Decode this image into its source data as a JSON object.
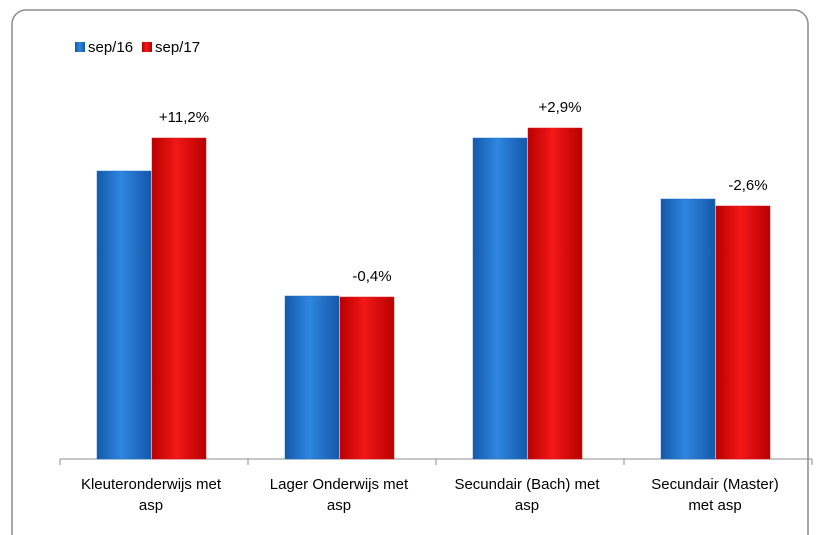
{
  "chart_data": {
    "type": "bar",
    "categories": [
      [
        "Kleuteronderwijs met",
        "asp"
      ],
      [
        "Lager Onderwijs met",
        "asp"
      ],
      [
        "Secundair (Bach) met",
        "asp"
      ],
      [
        "Secundair (Master)",
        "met asp"
      ]
    ],
    "series": [
      {
        "name": "sep/16",
        "color": "#1f6fc8",
        "values": [
          288,
          163,
          321,
          260
        ]
      },
      {
        "name": "sep/17",
        "color": "#e01010",
        "values": [
          321,
          162,
          331,
          253
        ]
      }
    ],
    "annotations": [
      "+11,2%",
      "-0,4%",
      "+2,9%",
      "-2,6%"
    ],
    "legend": "top-left"
  }
}
